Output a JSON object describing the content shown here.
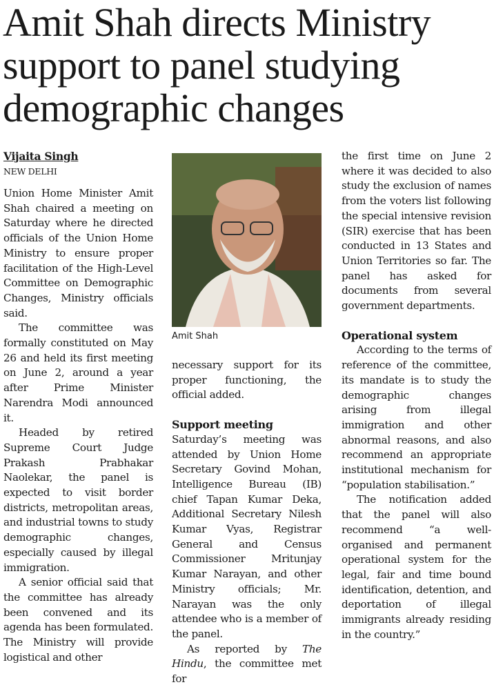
{
  "headline": [
    "Amit Shah directs Ministry",
    "support to panel studying",
    "demographic changes"
  ],
  "byline": "Vijaita Singh",
  "dateline": "NEW DELHI",
  "photo": {
    "caption": "Amit Shah"
  },
  "column_1": [
    "Union Home Minister Amit Shah chaired a meeting on Saturday where he directed officials of the Union Home Ministry to ensure proper facilitation of the High-Level Committee on Demographic Changes, Ministry officials said.",
    "The committee was formally constituted on May 26 and held its first meeting on June 2, around a year after Prime Minister Narendra Modi announced it.",
    "Headed by retired Supreme Court Judge Prakash Prabhakar Naolekar, the panel is expected to visit border districts, metropolitan areas, and industrial towns to study demographic changes, especially caused by illegal immigration.",
    "A senior official said that the committee has already been convened and its agenda has been formulated. The Ministry will provide logistical and other"
  ],
  "column_2": {
    "continued": "necessary support for its proper functioning, the official added.",
    "subhead": "Support meeting",
    "paragraph": "Saturday’s meeting was attended by Union Home Secretary Govind Mohan, Intelligence Bureau (IB) chief Tapan Kumar Deka, Additional Secretary Nilesh Kumar Vyas, Registrar General and Census Commissioner Mritunjay Kumar Narayan, and other Ministry officials; Mr. Narayan was the only attendee who is a member of the panel.",
    "last_paragraph": [
      "As reported by ",
      "The Hindu",
      ", the committee met for"
    ]
  },
  "column_3": {
    "continued": "the first time on June 2 where it was decided to also study the exclusion of names from the voters list following the special intensive revision (SIR) exercise that has been conducted in 13 States and Union Territories so far. The panel has asked for documents from several government departments.",
    "subhead": "Operational system",
    "paragraphs": [
      "According to the terms of reference of the committee, its mandate is to study the demographic changes arising from illegal immigration and other abnormal reasons, and also recommend an appropriate institutional mechanism for “population stabilisation.”",
      "The notification added that the panel will also recommend “a well-organised and permanent operational system for the legal, fair and time bound identification, detention, and deportation of illegal immigrants already residing in the country.”"
    ]
  }
}
